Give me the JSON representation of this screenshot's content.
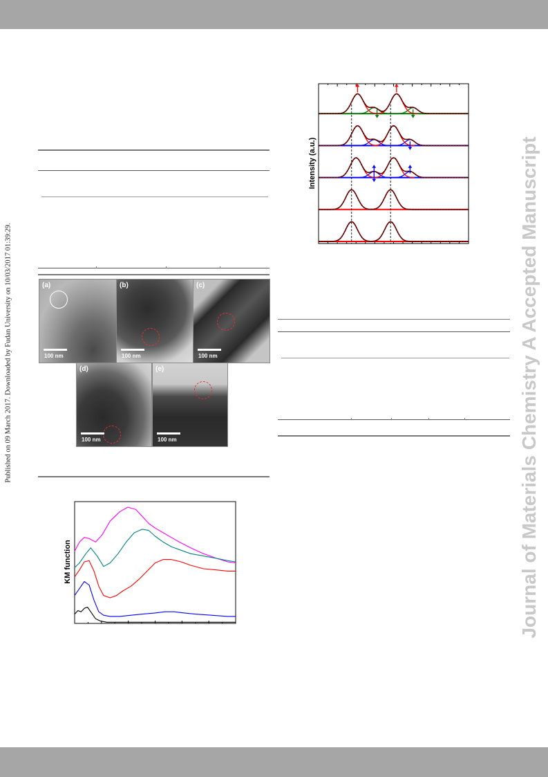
{
  "journal": {
    "side_banner": "Journal of Materials Chemistry A Accepted Manuscript"
  },
  "side_note": "Published on 09 March 2017. Downloaded by Fudan University on 10/03/2017 01:39:29.",
  "tem_figure": {
    "panels": [
      {
        "letter": "(a)",
        "scale": "100 nm"
      },
      {
        "letter": "(b)",
        "scale": "100 nm"
      },
      {
        "letter": "(c)",
        "scale": "100 nm"
      },
      {
        "letter": "(d)",
        "scale": "100 nm"
      },
      {
        "letter": "(e)",
        "scale": "100 nm"
      }
    ]
  },
  "colors": {
    "header_bar": "#a6a6a6",
    "watermark": "#c8c8c8",
    "magenta": "#ff00ff",
    "teal": "#008080",
    "red": "#ff0000",
    "blue": "#0000ff",
    "black": "#000000",
    "green": "#007700",
    "darkred": "#8b0000"
  },
  "chart_data": [
    {
      "type": "line",
      "ylabel": "KM function",
      "series": [
        {
          "color": "#ff00ff",
          "x": [
            0,
            0.03,
            0.06,
            0.09,
            0.13,
            0.17,
            0.22,
            0.28,
            0.33,
            0.38,
            0.42,
            0.46,
            0.5,
            0.55,
            0.6,
            0.65,
            0.72,
            0.8,
            0.88,
            0.95,
            1.0
          ],
          "values": [
            0.62,
            0.7,
            0.74,
            0.73,
            0.7,
            0.76,
            0.88,
            0.96,
            1.0,
            0.98,
            0.92,
            0.86,
            0.82,
            0.78,
            0.74,
            0.7,
            0.65,
            0.6,
            0.56,
            0.53,
            0.52
          ]
        },
        {
          "color": "#008080",
          "x": [
            0,
            0.03,
            0.07,
            0.1,
            0.14,
            0.18,
            0.22,
            0.27,
            0.32,
            0.37,
            0.42,
            0.46,
            0.5,
            0.55,
            0.6,
            0.66,
            0.72,
            0.8,
            0.88,
            0.95,
            1.0
          ],
          "values": [
            0.48,
            0.52,
            0.6,
            0.65,
            0.58,
            0.49,
            0.52,
            0.6,
            0.7,
            0.78,
            0.81,
            0.8,
            0.75,
            0.7,
            0.66,
            0.63,
            0.6,
            0.58,
            0.56,
            0.54,
            0.53
          ]
        },
        {
          "color": "#ff0000",
          "x": [
            0,
            0.03,
            0.06,
            0.09,
            0.12,
            0.15,
            0.18,
            0.22,
            0.26,
            0.3,
            0.35,
            0.4,
            0.45,
            0.5,
            0.55,
            0.6,
            0.66,
            0.72,
            0.8,
            0.88,
            0.95,
            1.0
          ],
          "values": [
            0.4,
            0.46,
            0.53,
            0.54,
            0.45,
            0.32,
            0.24,
            0.22,
            0.24,
            0.28,
            0.32,
            0.38,
            0.45,
            0.52,
            0.55,
            0.55,
            0.53,
            0.5,
            0.47,
            0.46,
            0.45,
            0.45
          ]
        },
        {
          "color": "#0000ff",
          "x": [
            0,
            0.03,
            0.06,
            0.09,
            0.12,
            0.15,
            0.18,
            0.22,
            0.28,
            0.35,
            0.42,
            0.5,
            0.56,
            0.62,
            0.68,
            0.75,
            0.85,
            0.95,
            1.0
          ],
          "values": [
            0.24,
            0.3,
            0.36,
            0.33,
            0.2,
            0.1,
            0.07,
            0.06,
            0.06,
            0.07,
            0.08,
            0.09,
            0.1,
            0.1,
            0.09,
            0.08,
            0.07,
            0.06,
            0.06
          ]
        },
        {
          "color": "#000000",
          "x": [
            0,
            0.02,
            0.04,
            0.06,
            0.08,
            0.1,
            0.13,
            0.16,
            0.2,
            0.3,
            0.4,
            0.5,
            0.6,
            0.7,
            0.8,
            0.9,
            1.0
          ],
          "values": [
            0.08,
            0.11,
            0.1,
            0.13,
            0.14,
            0.1,
            0.04,
            0.02,
            0.01,
            0.01,
            0.01,
            0.01,
            0.01,
            0.01,
            0.01,
            0.01,
            0.01
          ]
        }
      ]
    },
    {
      "type": "line",
      "ylabel": "Intensity (a.u.)",
      "dashed_reference_lines_x": [
        0.22,
        0.48
      ],
      "stacked_panels": [
        {
          "main_peaks": [
            0.26,
            0.52
          ],
          "side_components": [
            0.37,
            0.63
          ],
          "side_color": "#007700",
          "arrows": [
            {
              "x": 0.26,
              "dir": "up",
              "color": "#ff0000"
            },
            {
              "x": 0.52,
              "dir": "up",
              "color": "#ff0000"
            },
            {
              "x": 0.39,
              "dir": "down",
              "color": "#007700"
            },
            {
              "x": 0.63,
              "dir": "down",
              "color": "#007700"
            }
          ]
        },
        {
          "main_peaks": [
            0.26,
            0.5
          ],
          "side_components": [
            0.37,
            0.61
          ],
          "side_color": "#0000ff",
          "arrows": [
            {
              "x": 0.61,
              "dir": "down",
              "color": "#0000ff"
            }
          ]
        },
        {
          "main_peaks": [
            0.25,
            0.5
          ],
          "side_components": [
            0.37,
            0.61
          ],
          "side_color": "#0000ff",
          "arrows": [
            {
              "x": 0.37,
              "dir": "up",
              "color": "#0000ff"
            },
            {
              "x": 0.61,
              "dir": "up",
              "color": "#0000ff"
            },
            {
              "x": 0.37,
              "dir": "down",
              "color": "#0000ff"
            }
          ]
        },
        {
          "main_peaks": [
            0.22,
            0.48
          ],
          "side_components": [],
          "side_color": "#ff0000",
          "arrows": []
        },
        {
          "main_peaks": [
            0.22,
            0.48
          ],
          "side_components": [],
          "side_color": "#ff0000",
          "arrows": []
        }
      ]
    }
  ]
}
